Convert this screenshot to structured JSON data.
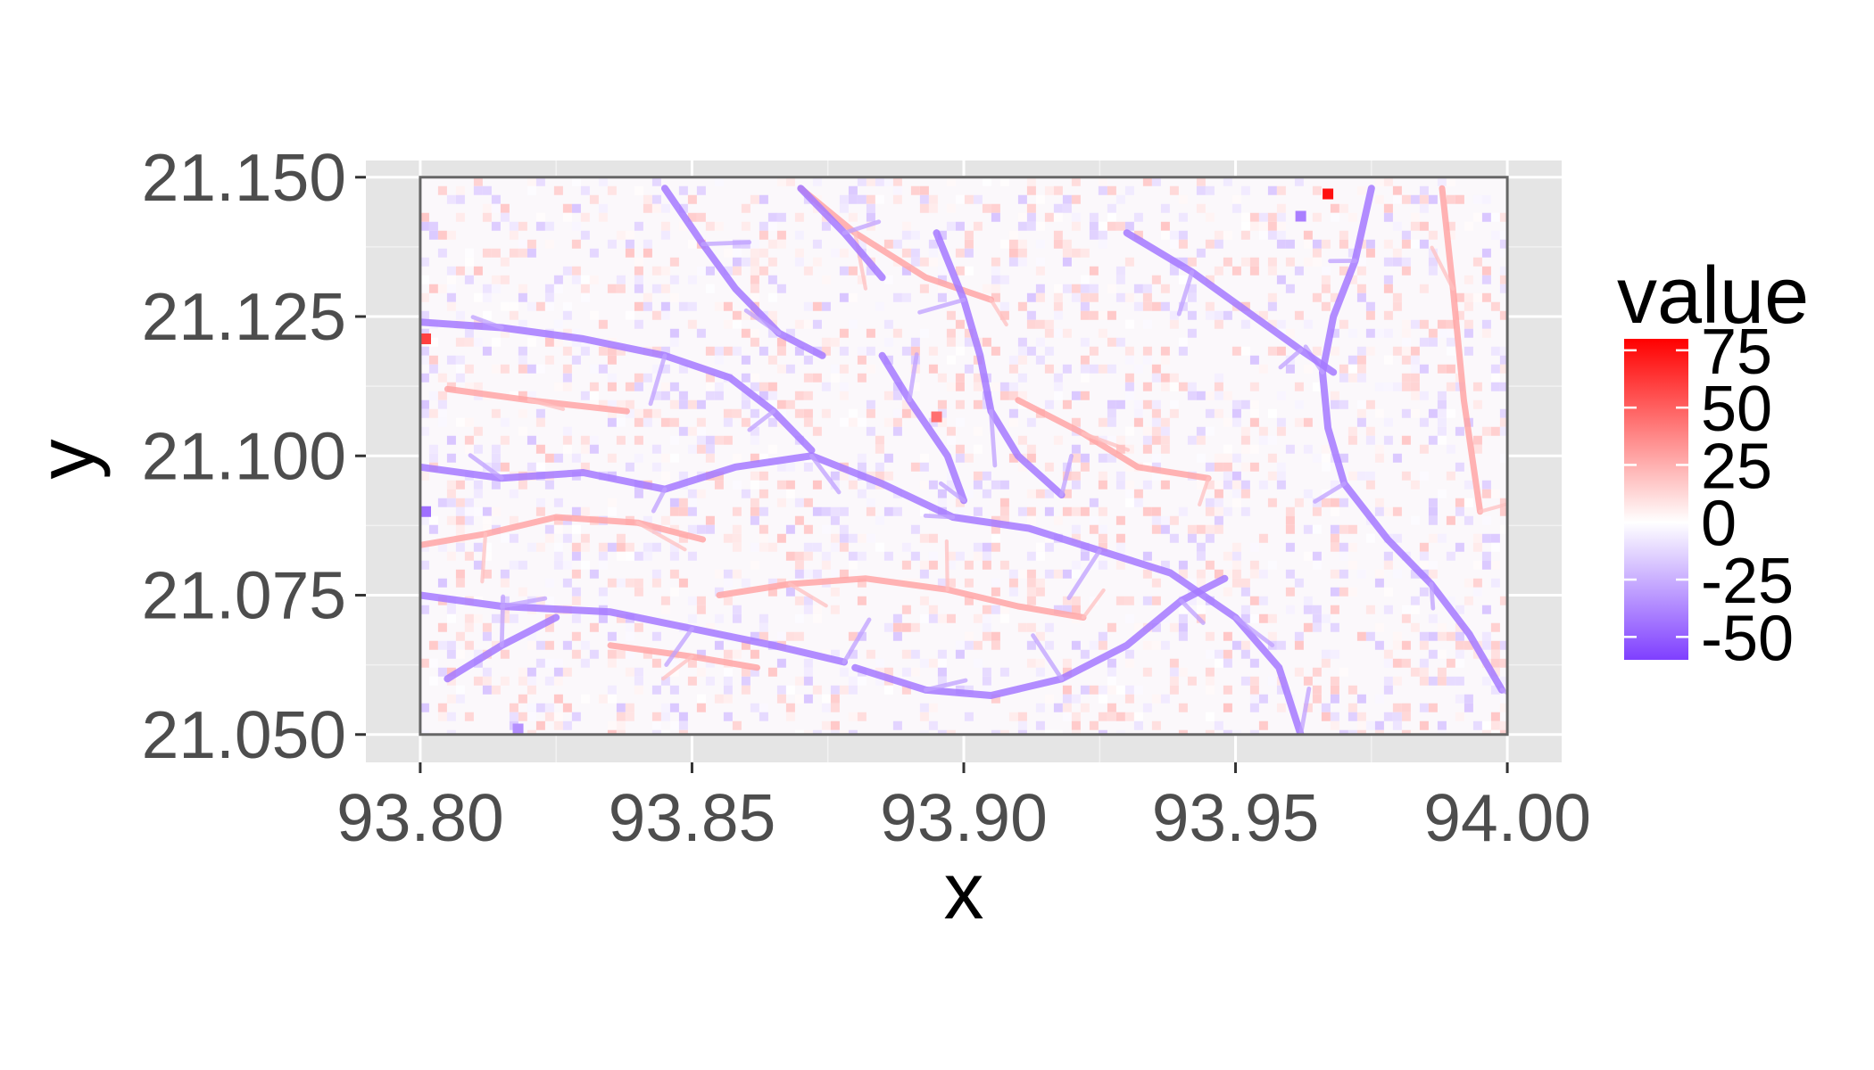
{
  "chart_data": {
    "type": "heatmap",
    "xlabel": "x",
    "ylabel": "y",
    "xlim": [
      93.79,
      94.01
    ],
    "ylim": [
      21.045,
      21.153
    ],
    "x_data_range": [
      93.8,
      94.0
    ],
    "y_data_range": [
      21.05,
      21.15
    ],
    "x_ticks": [
      93.8,
      93.85,
      93.9,
      93.95,
      94.0
    ],
    "x_tick_labels": [
      "93.80",
      "93.85",
      "93.90",
      "93.95",
      "94.00"
    ],
    "y_ticks": [
      21.05,
      21.075,
      21.1,
      21.125,
      21.15
    ],
    "y_tick_labels": [
      "21.050",
      "21.075",
      "21.100",
      "21.125",
      "21.150"
    ],
    "grid": true,
    "panel_border": true,
    "legend": {
      "title": "value",
      "placement": "right",
      "range": [
        -60,
        80
      ],
      "breaks": [
        75,
        50,
        25,
        0,
        -25,
        -50
      ],
      "labels": [
        "75",
        "50",
        "25",
        "0",
        "-25",
        "-50"
      ],
      "low_color": "#7f3fff",
      "mid_color": "#ffffff",
      "high_color": "#ff0000"
    },
    "drainage_channels_negative": [
      [
        [
          93.8,
          21.098
        ],
        [
          93.815,
          21.096
        ],
        [
          93.83,
          21.097
        ],
        [
          93.845,
          21.094
        ],
        [
          93.858,
          21.098
        ],
        [
          93.872,
          21.1
        ],
        [
          93.885,
          21.095
        ],
        [
          93.898,
          21.089
        ],
        [
          93.912,
          21.087
        ],
        [
          93.925,
          21.083
        ],
        [
          93.938,
          21.079
        ],
        [
          93.95,
          21.071
        ],
        [
          93.958,
          21.062
        ],
        [
          93.962,
          21.05
        ]
      ],
      [
        [
          93.8,
          21.124
        ],
        [
          93.815,
          21.123
        ],
        [
          93.83,
          21.121
        ],
        [
          93.845,
          21.118
        ],
        [
          93.857,
          21.114
        ],
        [
          93.865,
          21.108
        ],
        [
          93.872,
          21.101
        ]
      ],
      [
        [
          93.8,
          21.075
        ],
        [
          93.815,
          21.073
        ],
        [
          93.835,
          21.072
        ],
        [
          93.85,
          21.069
        ],
        [
          93.865,
          21.066
        ],
        [
          93.878,
          21.063
        ]
      ],
      [
        [
          93.88,
          21.062
        ],
        [
          93.893,
          21.058
        ],
        [
          93.905,
          21.057
        ],
        [
          93.918,
          21.06
        ],
        [
          93.93,
          21.066
        ],
        [
          93.94,
          21.074
        ],
        [
          93.948,
          21.078
        ]
      ],
      [
        [
          93.845,
          21.148
        ],
        [
          93.852,
          21.138
        ],
        [
          93.858,
          21.13
        ],
        [
          93.866,
          21.122
        ],
        [
          93.874,
          21.118
        ]
      ],
      [
        [
          93.975,
          21.148
        ],
        [
          93.972,
          21.135
        ],
        [
          93.968,
          21.125
        ],
        [
          93.966,
          21.115
        ],
        [
          93.967,
          21.105
        ],
        [
          93.97,
          21.095
        ],
        [
          93.978,
          21.085
        ],
        [
          93.986,
          21.077
        ],
        [
          93.993,
          21.068
        ],
        [
          93.999,
          21.058
        ]
      ],
      [
        [
          93.93,
          21.14
        ],
        [
          93.942,
          21.133
        ],
        [
          93.952,
          21.126
        ],
        [
          93.962,
          21.119
        ],
        [
          93.968,
          21.115
        ]
      ],
      [
        [
          93.895,
          21.14
        ],
        [
          93.9,
          21.128
        ],
        [
          93.903,
          21.118
        ],
        [
          93.905,
          21.108
        ],
        [
          93.91,
          21.1
        ],
        [
          93.918,
          21.093
        ]
      ],
      [
        [
          93.885,
          21.118
        ],
        [
          93.89,
          21.11
        ],
        [
          93.897,
          21.1
        ],
        [
          93.9,
          21.092
        ]
      ],
      [
        [
          93.805,
          21.06
        ],
        [
          93.815,
          21.066
        ],
        [
          93.825,
          21.071
        ]
      ],
      [
        [
          93.87,
          21.148
        ],
        [
          93.878,
          21.14
        ],
        [
          93.885,
          21.132
        ]
      ]
    ],
    "ridges_positive": [
      [
        [
          93.8,
          21.084
        ],
        [
          93.812,
          21.086
        ],
        [
          93.825,
          21.089
        ],
        [
          93.84,
          21.088
        ],
        [
          93.852,
          21.085
        ]
      ],
      [
        [
          93.855,
          21.075
        ],
        [
          93.868,
          21.077
        ],
        [
          93.882,
          21.078
        ],
        [
          93.897,
          21.076
        ],
        [
          93.91,
          21.073
        ],
        [
          93.922,
          21.071
        ]
      ],
      [
        [
          93.87,
          21.148
        ],
        [
          93.88,
          21.14
        ],
        [
          93.893,
          21.132
        ],
        [
          93.905,
          21.128
        ]
      ],
      [
        [
          93.835,
          21.066
        ],
        [
          93.85,
          21.064
        ],
        [
          93.862,
          21.062
        ]
      ],
      [
        [
          93.91,
          21.11
        ],
        [
          93.922,
          21.104
        ],
        [
          93.932,
          21.098
        ],
        [
          93.945,
          21.096
        ]
      ],
      [
        [
          93.988,
          21.148
        ],
        [
          93.99,
          21.13
        ],
        [
          93.992,
          21.11
        ],
        [
          93.995,
          21.09
        ]
      ],
      [
        [
          93.805,
          21.112
        ],
        [
          93.82,
          21.11
        ],
        [
          93.838,
          21.108
        ]
      ]
    ],
    "hotspots": [
      {
        "x": 93.967,
        "y": 21.147,
        "value": 75
      },
      {
        "x": 93.801,
        "y": 21.121,
        "value": 60
      },
      {
        "x": 93.895,
        "y": 21.107,
        "value": 45
      },
      {
        "x": 93.801,
        "y": 21.09,
        "value": -45
      },
      {
        "x": 93.962,
        "y": 21.143,
        "value": -40
      },
      {
        "x": 93.818,
        "y": 21.051,
        "value": -35
      }
    ]
  }
}
